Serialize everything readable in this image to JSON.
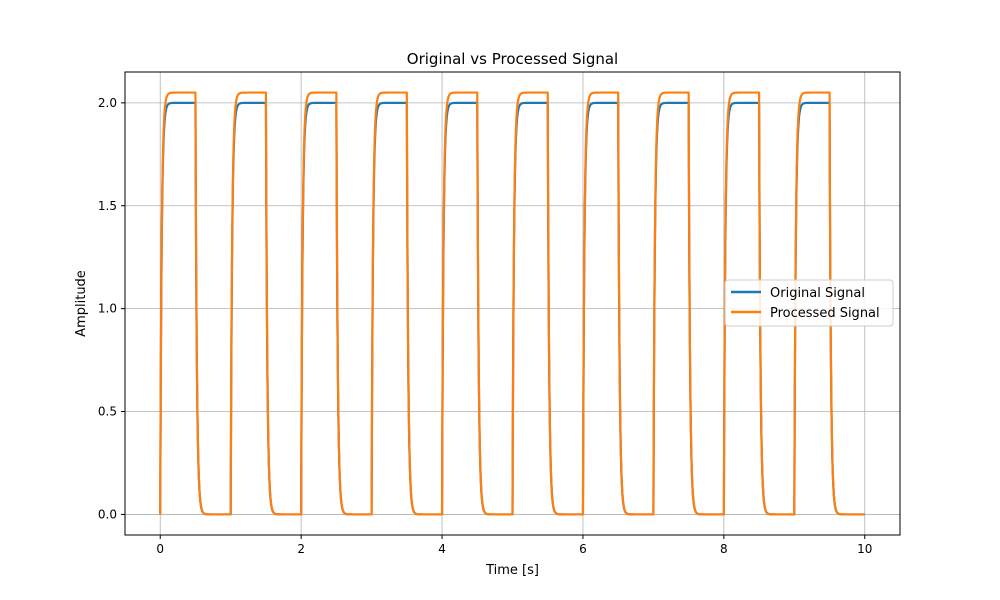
{
  "chart_data": {
    "type": "line",
    "title": "Original vs Processed Signal",
    "xlabel": "Time [s]",
    "ylabel": "Amplitude",
    "xlim": [
      -0.5,
      10.5
    ],
    "ylim": [
      -0.1,
      2.15
    ],
    "xticks": [
      0,
      2,
      4,
      6,
      8,
      10
    ],
    "xtick_labels": [
      "0",
      "2",
      "4",
      "6",
      "8",
      "10"
    ],
    "yticks": [
      0.0,
      0.5,
      1.0,
      1.5,
      2.0
    ],
    "ytick_labels": [
      "0.0",
      "0.5",
      "1.0",
      "1.5",
      "2.0"
    ],
    "grid": true,
    "legend_position": "center-right",
    "period": 1.0,
    "duty_cycle": 0.5,
    "duration": 10,
    "series": [
      {
        "name": "Original Signal",
        "color": "#1f77b4",
        "high": 2.0,
        "low": 0.0
      },
      {
        "name": "Processed Signal",
        "color": "#ff7f0e",
        "high": 2.05,
        "low": 0.0
      }
    ]
  }
}
